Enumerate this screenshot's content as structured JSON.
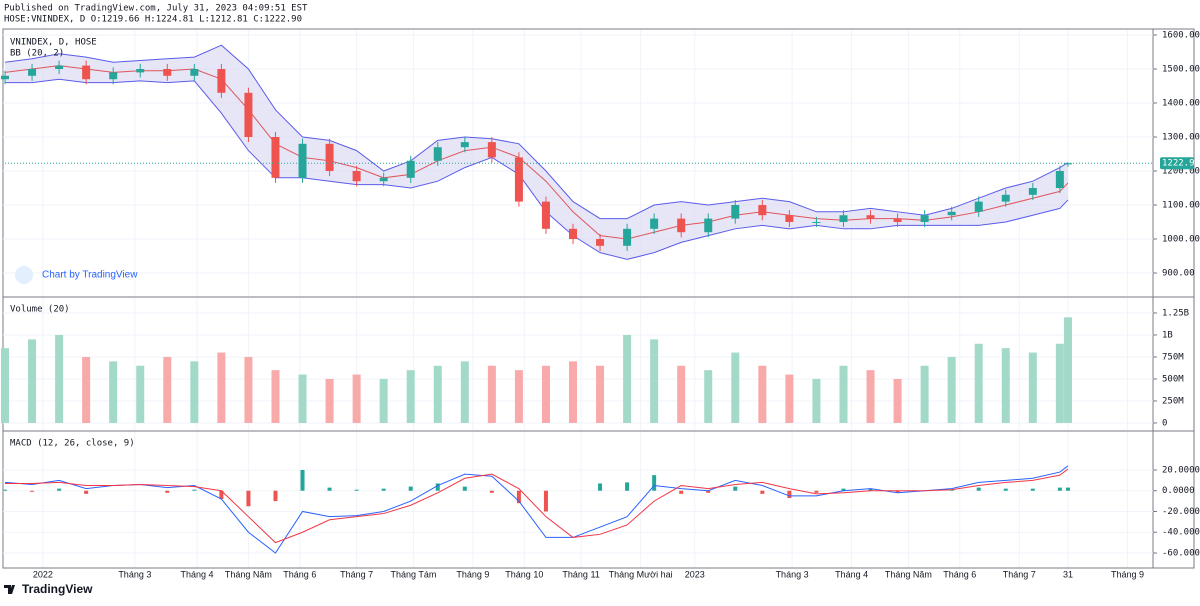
{
  "header": {
    "published": "Published on TradingView.com, July 31, 2023 04:09:51 EST",
    "symbol": "HOSE:VNINDEX, D O:1219.66 H:1224.81 L:1212.81 C:1222.90",
    "watermark": "Chart by TradingView",
    "brand": "TradingView"
  },
  "chart_data": [
    {
      "type": "candlestick",
      "title": "VNINDEX, D, HOSE",
      "subtitle": "BB (20, 2)",
      "x": [
        0,
        10,
        20,
        30,
        40,
        50,
        60,
        70,
        80,
        90,
        100,
        110,
        120,
        130,
        140,
        150,
        160,
        170,
        180,
        190,
        200,
        210,
        220,
        230,
        240,
        250,
        260,
        270,
        280,
        290,
        300,
        310,
        320,
        330,
        340,
        350,
        360,
        370,
        380,
        390,
        393
      ],
      "open": [
        1470,
        1480,
        1500,
        1510,
        1470,
        1490,
        1500,
        1480,
        1500,
        1430,
        1300,
        1180,
        1280,
        1200,
        1170,
        1180,
        1230,
        1270,
        1285,
        1240,
        1110,
        1030,
        1000,
        980,
        1030,
        1060,
        1020,
        1060,
        1100,
        1070,
        1050,
        1050,
        1070,
        1060,
        1050,
        1070,
        1080,
        1110,
        1130,
        1150,
        1219.66
      ],
      "high": [
        1495,
        1515,
        1525,
        1525,
        1505,
        1515,
        1515,
        1515,
        1515,
        1445,
        1315,
        1295,
        1295,
        1215,
        1195,
        1245,
        1285,
        1300,
        1300,
        1255,
        1125,
        1045,
        1015,
        1045,
        1075,
        1075,
        1075,
        1115,
        1115,
        1085,
        1065,
        1085,
        1085,
        1075,
        1085,
        1095,
        1125,
        1145,
        1165,
        1215,
        1224.81
      ],
      "low": [
        1455,
        1465,
        1485,
        1455,
        1455,
        1475,
        1465,
        1465,
        1415,
        1285,
        1165,
        1165,
        1185,
        1155,
        1155,
        1165,
        1215,
        1255,
        1225,
        1095,
        1015,
        985,
        965,
        965,
        1015,
        1005,
        1005,
        1045,
        1055,
        1035,
        1035,
        1035,
        1045,
        1035,
        1035,
        1055,
        1065,
        1095,
        1115,
        1135,
        1212.81
      ],
      "close": [
        1480,
        1500,
        1510,
        1470,
        1490,
        1500,
        1480,
        1500,
        1430,
        1300,
        1180,
        1280,
        1200,
        1170,
        1180,
        1230,
        1270,
        1285,
        1240,
        1110,
        1030,
        1000,
        980,
        1030,
        1060,
        1020,
        1060,
        1100,
        1070,
        1050,
        1050,
        1070,
        1060,
        1050,
        1070,
        1080,
        1110,
        1130,
        1150,
        1200,
        1222.9
      ],
      "last_value_label": "1222.90",
      "up_color": "#26a69a",
      "down_color": "#ef5350",
      "bands": {
        "upper": [
          1520,
          1530,
          1545,
          1535,
          1520,
          1525,
          1530,
          1535,
          1570,
          1500,
          1380,
          1300,
          1290,
          1260,
          1200,
          1230,
          1290,
          1300,
          1295,
          1280,
          1200,
          1110,
          1060,
          1060,
          1100,
          1110,
          1100,
          1110,
          1120,
          1110,
          1080,
          1080,
          1090,
          1080,
          1070,
          1090,
          1120,
          1150,
          1170,
          1210,
          1225
        ],
        "basis": [
          1490,
          1500,
          1510,
          1500,
          1490,
          1495,
          1495,
          1500,
          1470,
          1380,
          1280,
          1240,
          1230,
          1210,
          1180,
          1190,
          1230,
          1260,
          1270,
          1240,
          1170,
          1080,
          1010,
          1000,
          1020,
          1040,
          1050,
          1070,
          1080,
          1070,
          1060,
          1055,
          1060,
          1060,
          1055,
          1065,
          1080,
          1100,
          1120,
          1140,
          1165
        ],
        "lower": [
          1460,
          1460,
          1470,
          1460,
          1460,
          1465,
          1460,
          1465,
          1370,
          1260,
          1180,
          1180,
          1170,
          1160,
          1160,
          1150,
          1170,
          1210,
          1240,
          1190,
          1080,
          1010,
          960,
          940,
          960,
          990,
          1010,
          1030,
          1040,
          1030,
          1040,
          1030,
          1030,
          1040,
          1040,
          1040,
          1040,
          1050,
          1070,
          1090,
          1115
        ],
        "color": "#5b5bea",
        "basis_color": "#e0555a",
        "fill": "#dcdcf3"
      },
      "xlim": [
        0,
        420
      ],
      "ylim": [
        832.4,
        1614.7
      ],
      "yticks": [
        {
          "value": 1600,
          "label": "1600.00"
        },
        {
          "value": 1500,
          "label": "1500.00"
        },
        {
          "value": 1400,
          "label": "1400.00"
        },
        {
          "value": 1300,
          "label": "1300.00"
        },
        {
          "value": 1200,
          "label": "1200.00"
        },
        {
          "value": 1100,
          "label": "1100.00"
        },
        {
          "value": 1000,
          "label": "1000.00"
        },
        {
          "value": 900,
          "label": "900.00"
        }
      ],
      "grid": true
    },
    {
      "type": "volume",
      "title": "Volume (20)",
      "x": [
        0,
        10,
        20,
        30,
        40,
        50,
        60,
        70,
        80,
        90,
        100,
        110,
        120,
        130,
        140,
        150,
        160,
        170,
        180,
        190,
        200,
        210,
        220,
        230,
        240,
        250,
        260,
        270,
        280,
        290,
        300,
        310,
        320,
        330,
        340,
        350,
        360,
        370,
        380,
        390,
        393
      ],
      "values": [
        850000000,
        950000000,
        1000000000,
        750000000,
        700000000,
        650000000,
        750000000,
        700000000,
        800000000,
        750000000,
        600000000,
        550000000,
        500000000,
        550000000,
        500000000,
        600000000,
        650000000,
        700000000,
        650000000,
        600000000,
        650000000,
        700000000,
        650000000,
        1000000000,
        950000000,
        650000000,
        600000000,
        800000000,
        650000000,
        550000000,
        500000000,
        650000000,
        600000000,
        500000000,
        650000000,
        750000000,
        900000000,
        850000000,
        800000000,
        900000000,
        1200000000
      ],
      "up_color": "#a3d9c9",
      "down_color": "#f8a9aa",
      "xlim": [
        0,
        420
      ],
      "ylim": [
        -80000000,
        1420000000
      ],
      "yticks": [
        {
          "value": 1250000000,
          "label": "1.25B"
        },
        {
          "value": 1000000000,
          "label": "1B"
        },
        {
          "value": 750000000,
          "label": "750M"
        },
        {
          "value": 500000000,
          "label": "500M"
        },
        {
          "value": 250000000,
          "label": "250M"
        },
        0
      ],
      "grid": true
    },
    {
      "type": "macd",
      "title": "MACD (12, 26, close, 9)",
      "x": [
        0,
        10,
        20,
        30,
        40,
        50,
        60,
        70,
        80,
        90,
        100,
        110,
        120,
        130,
        140,
        150,
        160,
        170,
        180,
        190,
        200,
        210,
        220,
        230,
        240,
        250,
        260,
        270,
        280,
        290,
        300,
        310,
        320,
        330,
        340,
        350,
        360,
        370,
        380,
        390,
        393
      ],
      "macd": [
        8,
        6,
        10,
        2,
        5,
        6,
        3,
        5,
        -8,
        -40,
        -60,
        -20,
        -25,
        -24,
        -20,
        -10,
        5,
        16,
        14,
        -10,
        -45,
        -45,
        -35,
        -25,
        5,
        2,
        0,
        10,
        5,
        -5,
        -5,
        0,
        2,
        -2,
        0,
        2,
        8,
        10,
        12,
        18,
        24
      ],
      "signal": [
        7,
        7,
        8,
        5,
        5,
        6,
        5,
        4,
        0,
        -25,
        -50,
        -40,
        -28,
        -25,
        -22,
        -14,
        -2,
        12,
        16,
        2,
        -25,
        -45,
        -42,
        -33,
        -10,
        5,
        2,
        6,
        8,
        2,
        -3,
        -2,
        0,
        0,
        0,
        1,
        5,
        8,
        10,
        15,
        21
      ],
      "histogram": [
        1,
        -1,
        2,
        -3,
        0,
        0,
        -2,
        1,
        -8,
        -15,
        -10,
        20,
        3,
        1,
        2,
        4,
        7,
        4,
        -2,
        -12,
        -20,
        0,
        7,
        8,
        15,
        -3,
        -2,
        4,
        -3,
        -7,
        -2,
        2,
        2,
        -2,
        0,
        1,
        3,
        2,
        2,
        3,
        3
      ],
      "macd_color": "#2962ff",
      "signal_color": "#f23645",
      "hist_up_color": "#26a69a",
      "hist_down_color": "#ef5350",
      "xlim": [
        0,
        420
      ],
      "ylim": [
        -73.5,
        56.6
      ],
      "yticks": [
        {
          "value": 20,
          "label": "20.0000"
        },
        {
          "value": 0,
          "label": "0.0000"
        },
        {
          "value": -20,
          "label": "-20.0000"
        },
        {
          "value": -40,
          "label": "-40.0000"
        },
        {
          "value": -60,
          "label": "-60.0000"
        }
      ],
      "xticks": [
        {
          "value": 14,
          "label": "2022"
        },
        {
          "value": 48,
          "label": "Tháng 3"
        },
        {
          "value": 71,
          "label": "Tháng 4"
        },
        {
          "value": 90,
          "label": "Tháng Năm"
        },
        {
          "value": 109,
          "label": "Tháng 6"
        },
        {
          "value": 130,
          "label": "Tháng 7"
        },
        {
          "value": 151,
          "label": "Tháng Tám"
        },
        {
          "value": 173,
          "label": "Tháng 9"
        },
        {
          "value": 192,
          "label": "Tháng 10"
        },
        {
          "value": 213,
          "label": "Tháng 11"
        },
        {
          "value": 235,
          "label": "Tháng Mười hai"
        },
        {
          "value": 255,
          "label": "2023"
        },
        {
          "value": 291,
          "label": "Tháng 3"
        },
        {
          "value": 313,
          "label": "Tháng 4"
        },
        {
          "value": 334,
          "label": "Tháng Năm"
        },
        {
          "value": 353,
          "label": "Tháng 6"
        },
        {
          "value": 375,
          "label": "Tháng 7"
        },
        {
          "value": 393,
          "label": "31"
        },
        {
          "value": 415,
          "label": "Tháng 9"
        }
      ],
      "grid": true
    }
  ]
}
